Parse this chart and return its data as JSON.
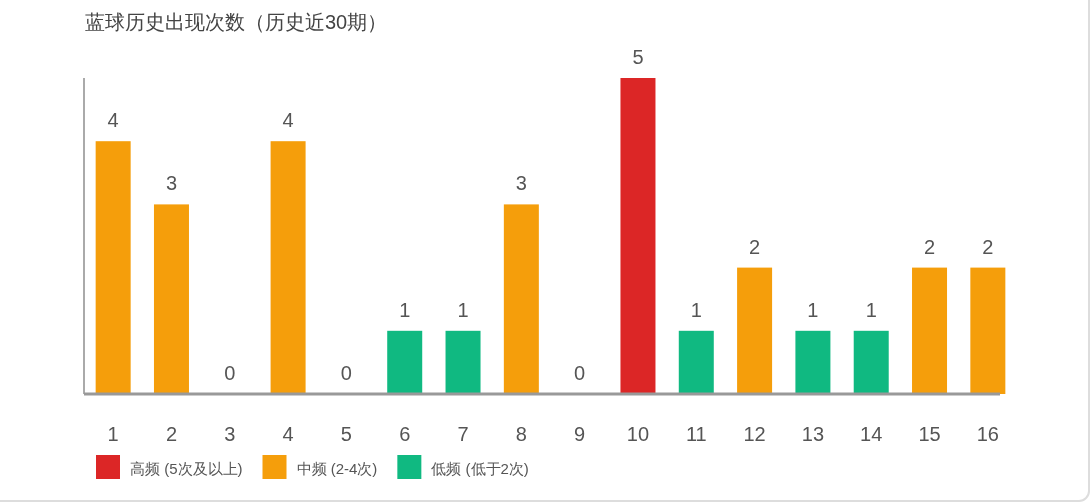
{
  "chart_data": {
    "type": "bar",
    "title": "蓝球历史出现次数（历史近30期）",
    "categories": [
      "1",
      "2",
      "3",
      "4",
      "5",
      "6",
      "7",
      "8",
      "9",
      "10",
      "11",
      "12",
      "13",
      "14",
      "15",
      "16"
    ],
    "series": [
      {
        "name": "高频 (5次及以上)",
        "color": "#dc2626",
        "values": [
          null,
          null,
          null,
          null,
          null,
          null,
          null,
          null,
          null,
          5,
          null,
          null,
          null,
          null,
          null,
          null
        ]
      },
      {
        "name": "中频 (2-4次)",
        "color": "#f59e0b",
        "values": [
          4,
          3,
          null,
          4,
          null,
          null,
          null,
          3,
          null,
          null,
          null,
          2,
          null,
          null,
          2,
          2
        ]
      },
      {
        "name": "低频 (低于2次)",
        "color": "#10b981",
        "values": [
          null,
          null,
          0,
          null,
          0,
          1,
          1,
          null,
          0,
          null,
          1,
          null,
          1,
          1,
          null,
          null
        ]
      }
    ],
    "stacked": true,
    "ylim": [
      0,
      5
    ],
    "data_labels": true,
    "tick_labels": "x",
    "legend": "bottom"
  }
}
